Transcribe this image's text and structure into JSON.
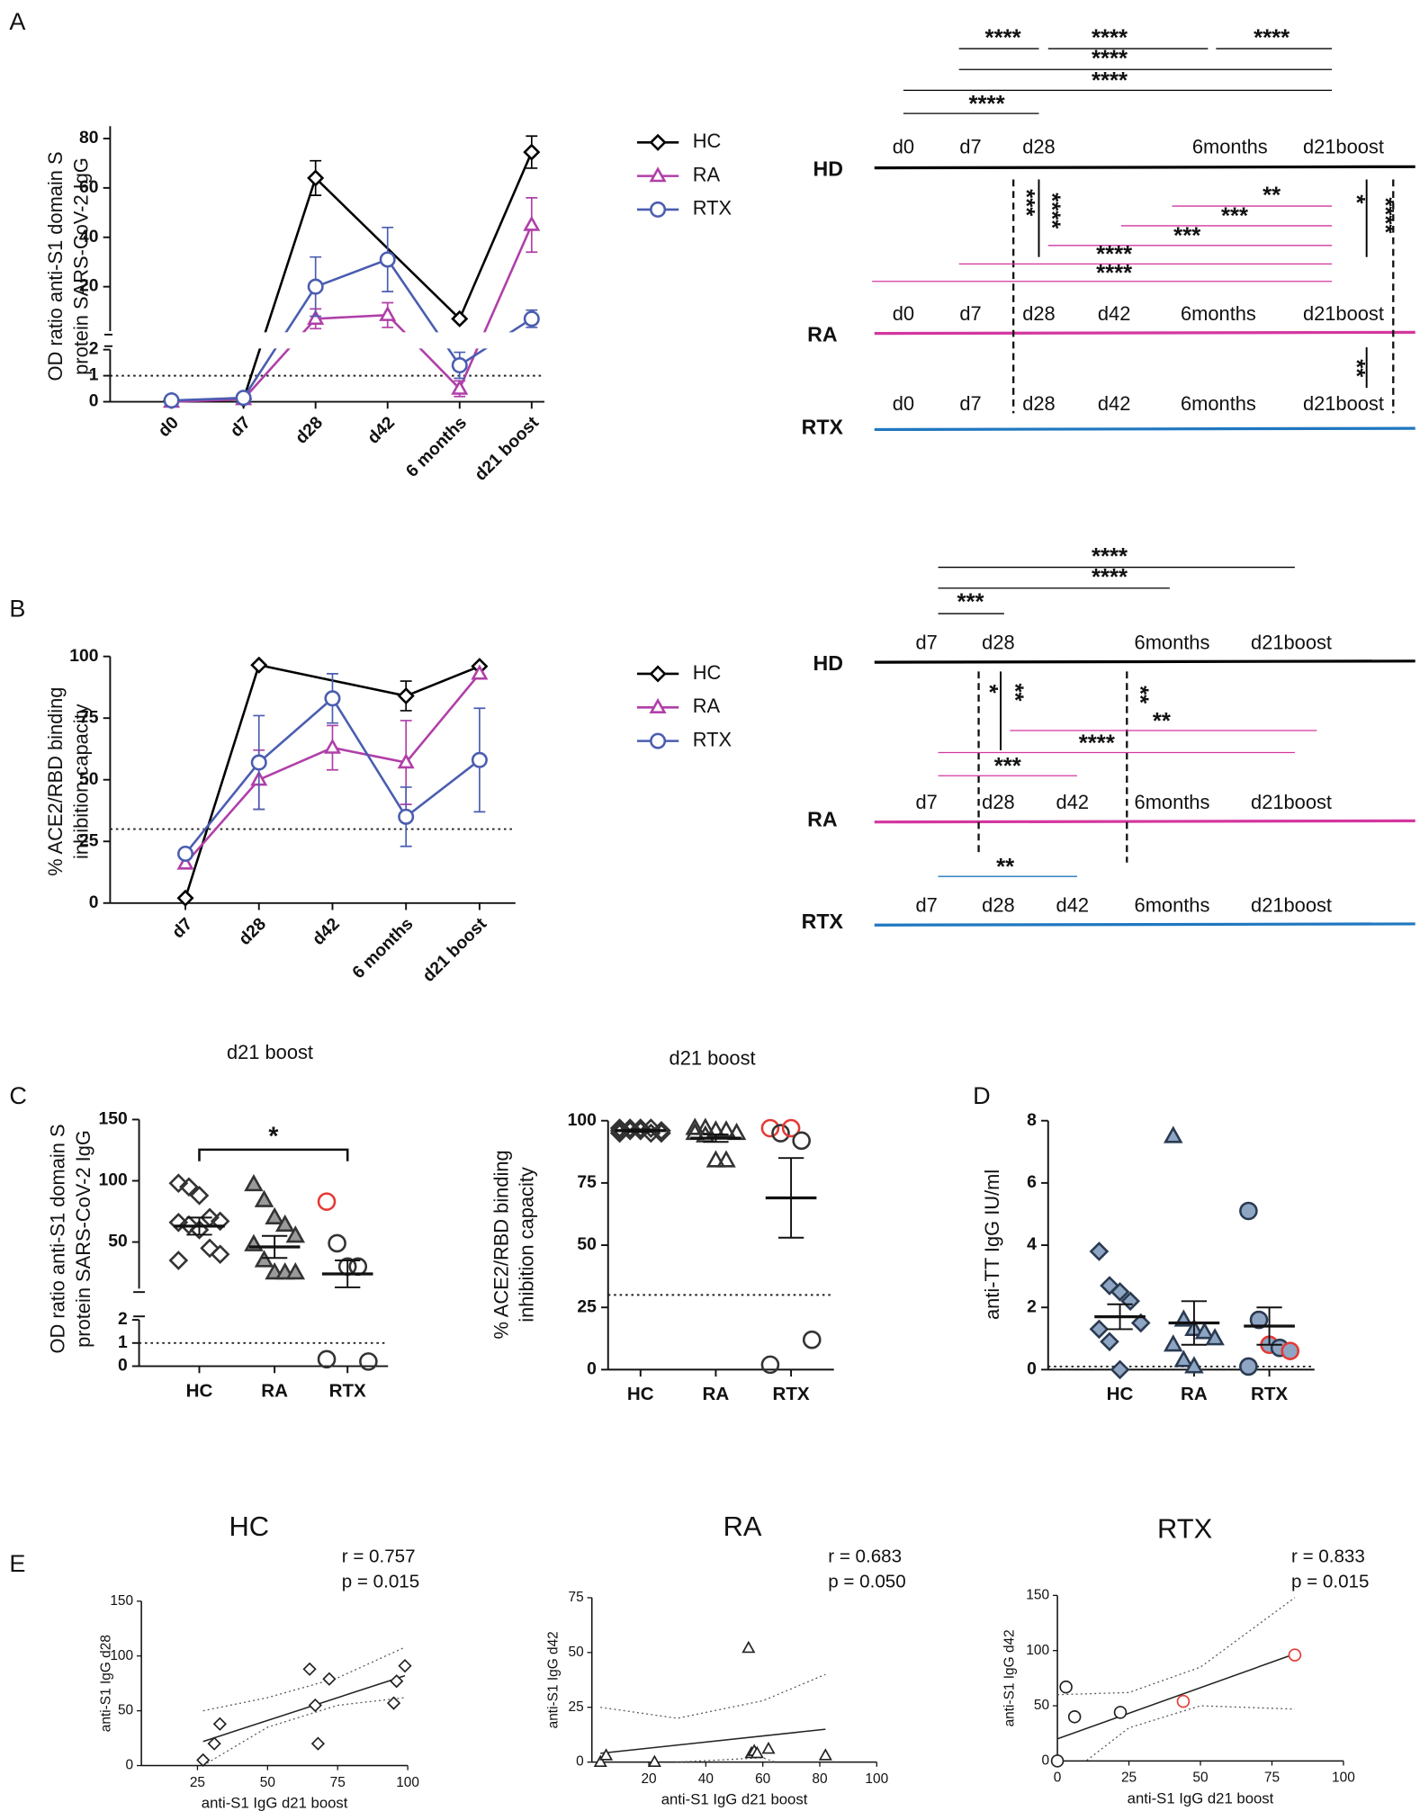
{
  "panel_labels": [
    "A",
    "B",
    "C",
    "D",
    "E"
  ],
  "chart_data": [
    {
      "type": "line",
      "categories": [
        "d0",
        "d7",
        "d28",
        "d42",
        "6 months",
        "d21 boost"
      ],
      "ylabel": [
        "OD ratio anti-S1 domain S",
        "protein SARS-CoV-2 IgG"
      ],
      "ylim_lower": [
        0,
        2
      ],
      "yticks_lower": [
        0,
        1,
        2
      ],
      "ylim": [
        2,
        85
      ],
      "yticks": [
        20,
        40,
        60,
        80
      ],
      "threshold": 1,
      "connect_gaps": true,
      "series": [
        {
          "name": "HC",
          "color": "#000000",
          "marker": "diamond",
          "values": [
            0.05,
            0.1,
            64,
            null,
            7,
            74.5
          ],
          "errors": [
            0,
            0,
            7,
            null,
            1,
            6.5
          ]
        },
        {
          "name": "RA",
          "color": "#b03fa8",
          "marker": "triangle",
          "values": [
            0,
            0.1,
            7,
            8.5,
            0.5,
            45
          ],
          "errors": [
            0,
            0,
            4,
            5,
            0.3,
            11
          ]
        },
        {
          "name": "RTX",
          "color": "#4a5db0",
          "marker": "circle",
          "values": [
            0.05,
            0.15,
            20,
            31,
            1.4,
            7
          ],
          "errors": [
            0,
            0,
            12,
            13,
            0.5,
            3.5
          ]
        }
      ]
    },
    {
      "type": "line",
      "categories": [
        "d7",
        "d28",
        "d42",
        "6 months",
        "d21 boost"
      ],
      "ylabel": [
        "% ACE2/RBD binding",
        "inhibition capacity"
      ],
      "ylim": [
        0,
        100
      ],
      "yticks": [
        0,
        25,
        50,
        75,
        100
      ],
      "threshold": 30,
      "connect_gaps": true,
      "series": [
        {
          "name": "HC",
          "color": "#000000",
          "marker": "diamond",
          "values": [
            2,
            96.5,
            null,
            84,
            96
          ],
          "errors": [
            0,
            0,
            null,
            6,
            0
          ]
        },
        {
          "name": "RA",
          "color": "#b03fa8",
          "marker": "triangle",
          "values": [
            16,
            50,
            63,
            57,
            93
          ],
          "errors": [
            0,
            12,
            9,
            17,
            0
          ]
        },
        {
          "name": "RTX",
          "color": "#4a5db0",
          "marker": "circle",
          "values": [
            20,
            57,
            83,
            35,
            58
          ],
          "errors": [
            0,
            19,
            10,
            12,
            21
          ]
        }
      ]
    },
    {
      "type": "dot",
      "title": "d21 boost",
      "categories": [
        "HC",
        "RA",
        "RTX"
      ],
      "ylabel": [
        "OD ratio anti-S1 domain S",
        "protein SARS-CoV-2 IgG"
      ],
      "ylim_lower": [
        0,
        2
      ],
      "yticks_lower": [
        0,
        1,
        2
      ],
      "ylim": [
        12,
        150
      ],
      "yticks": [
        50,
        100,
        150
      ],
      "threshold": 1,
      "significance": {
        "label": "*",
        "between": [
          0,
          2
        ]
      },
      "groups": [
        {
          "marker": "diamond",
          "color": "#333333",
          "fill": "none",
          "values": [
            98,
            95,
            88,
            70,
            67,
            66,
            64,
            60,
            45,
            40,
            35
          ],
          "mean": 63,
          "sem": 7
        },
        {
          "marker": "triangle",
          "color": "#333333",
          "fill": "#9a9a9a",
          "values": [
            97,
            84,
            70,
            64,
            55,
            48,
            35,
            25,
            25,
            25
          ],
          "mean": 46,
          "sem": 9
        },
        {
          "marker": "circle",
          "color": "#333333",
          "fill": "none",
          "values": [
            83,
            49,
            30,
            30,
            0.2,
            0.3
          ],
          "point_colors": [
            "#e53935",
            "#333333",
            "#333333",
            "#333333",
            "#333333",
            "#333333"
          ],
          "mean": 24,
          "sem": 11
        }
      ]
    },
    {
      "type": "dot",
      "title": "d21 boost",
      "categories": [
        "HC",
        "RA",
        "RTX"
      ],
      "ylabel": [
        "% ACE2/RBD binding",
        "inhibition capacity"
      ],
      "ylim": [
        0,
        100
      ],
      "yticks": [
        0,
        25,
        50,
        75,
        100
      ],
      "threshold": 30,
      "groups": [
        {
          "marker": "diamond",
          "color": "#333333",
          "fill": "none",
          "values": [
            97,
            97,
            97,
            97,
            96,
            96,
            96,
            96,
            95,
            95,
            95
          ],
          "mean": 96,
          "sem": 0.5
        },
        {
          "marker": "triangle",
          "color": "#333333",
          "fill": "none",
          "values": [
            97,
            97,
            96,
            96,
            95,
            95,
            94,
            84,
            84
          ],
          "mean": 93,
          "sem": 1.5
        },
        {
          "marker": "circle",
          "color": "#333333",
          "fill": "none",
          "values": [
            97,
            95,
            97,
            92,
            12,
            2
          ],
          "point_colors": [
            "#e53935",
            "#333333",
            "#e53935",
            "#333333",
            "#333333",
            "#333333"
          ],
          "mean": 69,
          "sem": 16
        }
      ]
    },
    {
      "type": "dot",
      "categories": [
        "HC",
        "RA",
        "RTX"
      ],
      "ylabel": [
        "anti-TT IgG IU/ml"
      ],
      "ylim": [
        0,
        8
      ],
      "yticks": [
        0,
        2,
        4,
        6,
        8
      ],
      "threshold": 0.1,
      "groups": [
        {
          "marker": "diamond",
          "color": "#2a3a50",
          "fill": "#8ea6c4",
          "values": [
            3.8,
            2.7,
            2.5,
            2.2,
            1.5,
            1.3,
            0.9,
            0
          ],
          "mean": 1.7,
          "sem": 0.4
        },
        {
          "marker": "triangle",
          "color": "#2a3a50",
          "fill": "#8ea6c4",
          "values": [
            7.5,
            1.6,
            1.3,
            1.2,
            1.0,
            0.8,
            0.3,
            0.1
          ],
          "mean": 1.5,
          "sem": 0.7
        },
        {
          "marker": "circle",
          "color": "#2a3a50",
          "fill": "#8ea6c4",
          "values": [
            5.1,
            1.6,
            0.8,
            0.7,
            0.6,
            0.1
          ],
          "point_colors": [
            "#2a3a50",
            "#2a3a50",
            "#e53935",
            "#2a3a50",
            "#e53935",
            "#2a3a50"
          ],
          "mean": 1.4,
          "sem": 0.6
        }
      ]
    },
    {
      "type": "scatter",
      "title": "HC",
      "stats": [
        "r = 0.757",
        "p = 0.015"
      ],
      "xlabel": "anti-S1 IgG d21 boost",
      "ylabel": "anti-S1 IgG d28",
      "xlim": [
        5,
        100
      ],
      "xticks": [
        25,
        50,
        75,
        100
      ],
      "ylim": [
        0,
        150
      ],
      "yticks": [
        0,
        50,
        100,
        150
      ],
      "marker": "diamond",
      "color": "#222222",
      "x": [
        27,
        31,
        33,
        65,
        67,
        68,
        72,
        95,
        96,
        99
      ],
      "y": [
        5,
        20,
        38,
        88,
        55,
        20,
        79,
        57,
        77,
        91
      ],
      "fit": {
        "x": [
          27,
          99
        ],
        "y": [
          22,
          82
        ]
      },
      "ci": {
        "x": [
          27,
          50,
          75,
          99
        ],
        "upper": [
          50,
          62,
          80,
          108
        ],
        "lower": [
          0,
          35,
          55,
          62
        ]
      }
    },
    {
      "type": "scatter",
      "title": "RA",
      "stats": [
        "r = 0.683",
        "p = 0.050"
      ],
      "xlabel": "anti-S1 IgG d21 boost",
      "ylabel": "anti-S1 IgG d42",
      "xlim": [
        0,
        100
      ],
      "xticks": [
        20,
        40,
        60,
        80,
        100
      ],
      "ylim": [
        0,
        75
      ],
      "yticks": [
        0,
        25,
        50,
        75
      ],
      "marker": "triangle",
      "color": "#222222",
      "x": [
        3,
        5,
        22,
        55,
        56,
        57,
        58,
        62,
        82
      ],
      "y": [
        0,
        3,
        0,
        52,
        4,
        5,
        4,
        6,
        3
      ],
      "fit": {
        "x": [
          3,
          82
        ],
        "y": [
          4,
          15
        ]
      },
      "ci": {
        "x": [
          3,
          30,
          60,
          82
        ],
        "upper": [
          25,
          20,
          28,
          40
        ],
        "lower": [
          -10,
          0,
          2,
          -8
        ]
      }
    },
    {
      "type": "scatter",
      "title": "RTX",
      "stats": [
        "r = 0.833",
        "p = 0.015"
      ],
      "xlabel": "anti-S1 IgG d21 boost",
      "ylabel": "anti-S1 IgG d42",
      "xlim": [
        0,
        100
      ],
      "xticks": [
        0,
        25,
        50,
        75,
        100
      ],
      "ylim": [
        0,
        150
      ],
      "yticks": [
        0,
        50,
        100,
        150
      ],
      "marker": "circle",
      "color": "#222222",
      "x": [
        0,
        3,
        6,
        22,
        44,
        83
      ],
      "y": [
        0,
        67,
        40,
        44,
        54,
        96
      ],
      "point_colors": [
        "#222222",
        "#222222",
        "#222222",
        "#222222",
        "#e53935",
        "#e53935"
      ],
      "fit": {
        "x": [
          0,
          83
        ],
        "y": [
          20,
          97
        ]
      },
      "ci": {
        "x": [
          0,
          25,
          50,
          83
        ],
        "upper": [
          60,
          62,
          85,
          148
        ],
        "lower": [
          -20,
          30,
          50,
          47
        ]
      }
    }
  ],
  "significance": [
    {
      "rows": [
        {
          "name": "HD",
          "color": "#000000",
          "timepoints": [
            "d0",
            "d7",
            "d28",
            "6months",
            "d21boost"
          ]
        },
        {
          "name": "RA",
          "color": "#d4369f",
          "timepoints": [
            "d0",
            "d7",
            "d28",
            "d42",
            "6months",
            "d21boost"
          ]
        },
        {
          "name": "RTX",
          "color": "#1f77c0",
          "timepoints": [
            "d0",
            "d7",
            "d28",
            "d42",
            "6months",
            "d21boost"
          ]
        }
      ],
      "marks": [
        {
          "label": "****",
          "color": "#000000"
        },
        {
          "label": "****",
          "color": "#000000"
        },
        {
          "label": "****",
          "color": "#000000"
        },
        {
          "label": "****",
          "color": "#000000"
        },
        {
          "label": "****",
          "color": "#000000"
        },
        {
          "label": "****",
          "color": "#000000"
        },
        {
          "label": "***",
          "color": "#000000"
        },
        {
          "label": "****",
          "color": "#000000"
        },
        {
          "label": "*",
          "color": "#000000"
        },
        {
          "label": "****",
          "color": "#000000"
        },
        {
          "label": "**",
          "color": "#d4369f"
        },
        {
          "label": "***",
          "color": "#d4369f"
        },
        {
          "label": "***",
          "color": "#d4369f"
        },
        {
          "label": "****",
          "color": "#d4369f"
        },
        {
          "label": "****",
          "color": "#d4369f"
        },
        {
          "label": "**",
          "color": "#000000"
        }
      ]
    },
    {
      "rows": [
        {
          "name": "HD",
          "color": "#000000",
          "timepoints": [
            "d7",
            "d28",
            "6months",
            "d21boost"
          ]
        },
        {
          "name": "RA",
          "color": "#d4369f",
          "timepoints": [
            "d7",
            "d28",
            "d42",
            "6months",
            "d21boost"
          ]
        },
        {
          "name": "RTX",
          "color": "#1f77c0",
          "timepoints": [
            "d7",
            "d28",
            "d42",
            "6months",
            "d21boost"
          ]
        }
      ],
      "marks": [
        {
          "label": "****",
          "color": "#000000"
        },
        {
          "label": "****",
          "color": "#000000"
        },
        {
          "label": "***",
          "color": "#000000"
        },
        {
          "label": "*",
          "color": "#000000"
        },
        {
          "label": "**",
          "color": "#000000"
        },
        {
          "label": "**",
          "color": "#000000"
        },
        {
          "label": "**",
          "color": "#d4369f"
        },
        {
          "label": "****",
          "color": "#d4369f"
        },
        {
          "label": "***",
          "color": "#d4369f"
        },
        {
          "label": "**",
          "color": "#1f77c0"
        }
      ]
    }
  ]
}
